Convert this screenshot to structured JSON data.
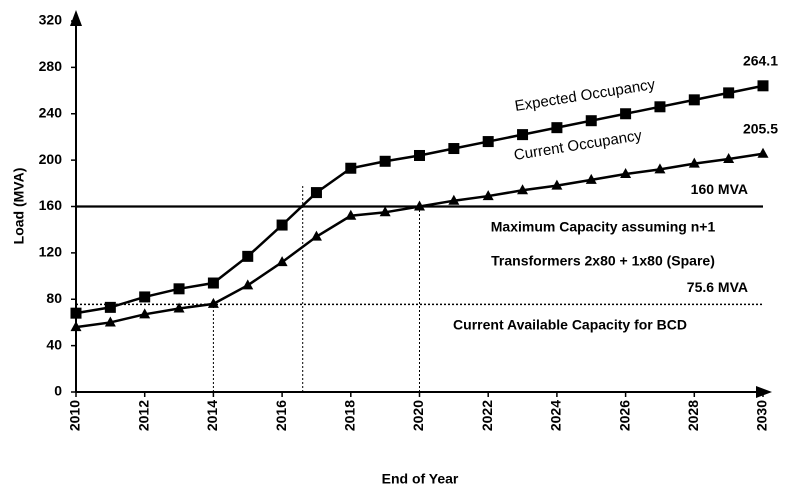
{
  "chart_data": {
    "type": "line",
    "xlabel": "End of Year",
    "ylabel": "Load (MVA)",
    "x": [
      2010,
      2011,
      2012,
      2013,
      2014,
      2015,
      2016,
      2017,
      2018,
      2019,
      2020,
      2021,
      2022,
      2023,
      2024,
      2025,
      2026,
      2027,
      2028,
      2029,
      2030
    ],
    "series": [
      {
        "name": "Expected Occupancy",
        "color": "#000000",
        "marker": "square",
        "values": [
          68,
          73,
          82,
          89,
          94,
          117,
          144,
          172,
          193,
          199,
          204,
          210,
          216,
          222,
          228,
          234,
          240,
          246,
          252,
          258,
          264.1
        ]
      },
      {
        "name": "Current Occupancy",
        "color": "#000000",
        "marker": "triangle",
        "values": [
          56,
          60,
          67,
          72,
          76,
          92,
          112,
          134,
          152,
          155,
          160,
          165,
          169,
          174,
          178,
          183,
          188,
          192,
          197,
          201,
          205.5
        ]
      }
    ],
    "reference_lines": [
      {
        "value": 160,
        "label": "160 MVA",
        "style": "solid"
      },
      {
        "value": 75.6,
        "label": "75.6  MVA",
        "style": "dotted"
      }
    ],
    "vertical_lines": [
      {
        "x": 2014,
        "to": 75.6
      },
      {
        "x": 2016.6,
        "to": 178
      },
      {
        "x": 2020,
        "to": 160
      }
    ],
    "annotations": [
      "Maximum Capacity assuming n+1",
      "Transformers 2x80 + 1x80 (Spare)",
      "Current Available Capacity for BCD"
    ],
    "xlim": [
      2010,
      2030
    ],
    "ylim": [
      0,
      320
    ],
    "xticks": [
      2010,
      2012,
      2014,
      2016,
      2018,
      2020,
      2022,
      2024,
      2026,
      2028,
      2030
    ],
    "yticks": [
      0,
      40,
      80,
      120,
      160,
      200,
      240,
      280,
      320
    ],
    "grid": false
  }
}
